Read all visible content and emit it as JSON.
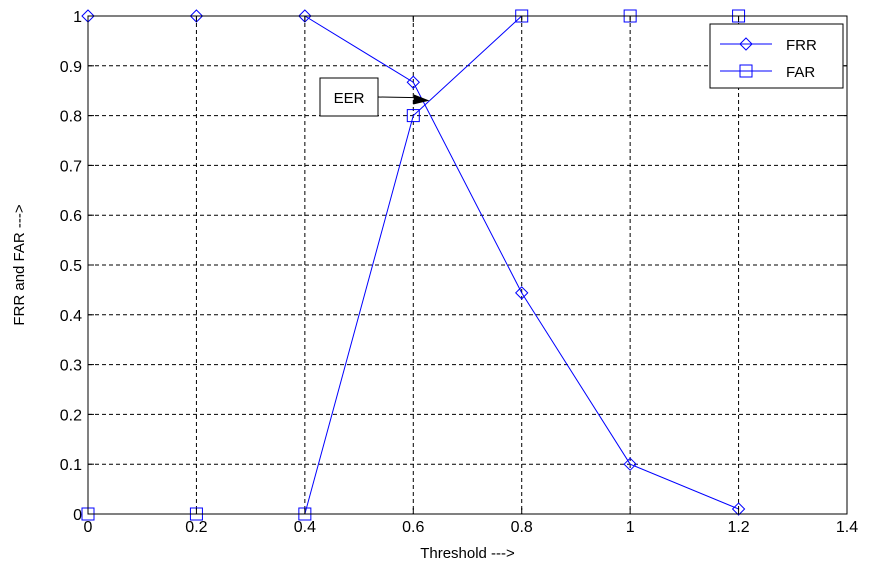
{
  "chart_data": {
    "type": "line",
    "xlabel": "Threshold --->",
    "ylabel": "FRR and FAR --->",
    "xlim": [
      0,
      1.4
    ],
    "ylim": [
      0,
      1
    ],
    "xticks": [
      "0",
      "0.2",
      "0.4",
      "0.6",
      "0.8",
      "1",
      "1.2",
      "1.4"
    ],
    "yticks": [
      "0",
      "0.1",
      "0.2",
      "0.3",
      "0.4",
      "0.5",
      "0.6",
      "0.7",
      "0.8",
      "0.9",
      "1"
    ],
    "grid": true,
    "legend_position": "top-right",
    "series": [
      {
        "name": "FRR",
        "marker": "diamond",
        "color": "#0000ff",
        "x": [
          0,
          0.2,
          0.4,
          0.6,
          0.8,
          1.0,
          1.2
        ],
        "y": [
          1,
          1,
          1,
          0.867,
          0.444,
          0.1,
          0.01
        ]
      },
      {
        "name": "FAR",
        "marker": "square",
        "color": "#0000ff",
        "x": [
          0,
          0.2,
          0.4,
          0.6,
          0.8,
          1.0,
          1.2
        ],
        "y": [
          0,
          0,
          0,
          0.8,
          1,
          1,
          1
        ]
      }
    ],
    "annotations": [
      {
        "text": "EER",
        "x": 0.63,
        "y": 0.83
      }
    ]
  }
}
